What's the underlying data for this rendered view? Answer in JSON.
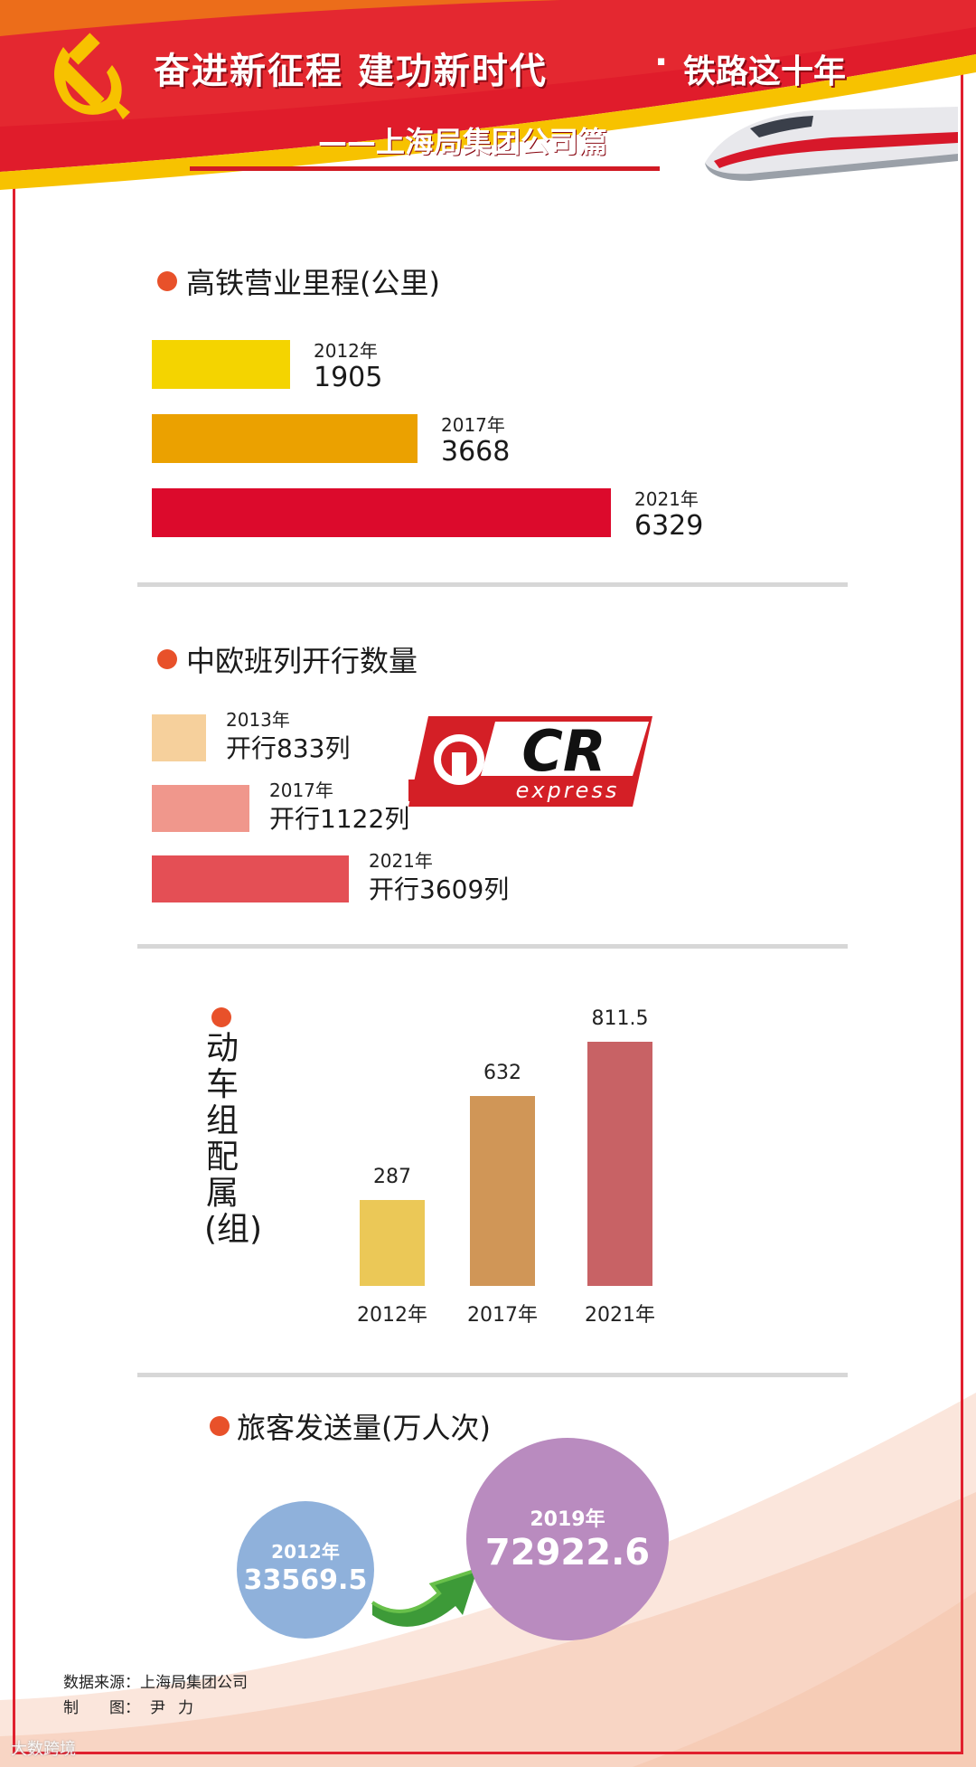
{
  "header": {
    "title_main": "奋进新征程 建功新时代",
    "title_sep": "·",
    "title_tail": "铁路这十年",
    "subtitle": "——上海局集团公司篇",
    "colors": {
      "red": "#e0202e",
      "gold": "#f5c400"
    }
  },
  "logo": {
    "text_top": "CR",
    "text_bottom": "express"
  },
  "chart_data": [
    {
      "type": "bar",
      "orientation": "horizontal",
      "title": "高铁营业里程(公里)",
      "categories": [
        "2012年",
        "2017年",
        "2021年"
      ],
      "values": [
        1905,
        3668,
        6329
      ],
      "value_labels": [
        "1905",
        "3668",
        "6329"
      ],
      "colors": [
        "#f4d400",
        "#eba100",
        "#dc0a2c"
      ]
    },
    {
      "type": "bar",
      "orientation": "horizontal",
      "title": "中欧班列开行数量",
      "categories": [
        "2013年",
        "2017年",
        "2021年"
      ],
      "values": [
        833,
        1122,
        3609
      ],
      "value_labels": [
        "开行833列",
        "开行1122列",
        "开行3609列"
      ],
      "colors": [
        "#f6d09c",
        "#f0978c",
        "#e44f55"
      ]
    },
    {
      "type": "bar",
      "orientation": "vertical",
      "title": "动车组配属(组)",
      "categories": [
        "2012年",
        "2017年",
        "2021年"
      ],
      "values": [
        287,
        632,
        811.5
      ],
      "value_labels": [
        "287",
        "632",
        "811.5"
      ],
      "colors": [
        "#ebc857",
        "#d09657",
        "#c86265"
      ]
    },
    {
      "type": "bubble",
      "title": "旅客发送量(万人次)",
      "categories": [
        "2012年",
        "2019年"
      ],
      "values": [
        33569.5,
        72922.6
      ],
      "value_labels": [
        "33569.5",
        "72922.6"
      ],
      "colors": [
        "#8fb1db",
        "#b98bbf"
      ]
    }
  ],
  "footer": {
    "source": "数据来源：上海局集团公司",
    "maker_label": "制　　图：",
    "maker_name": "尹力",
    "watermark": "大数跨境"
  }
}
